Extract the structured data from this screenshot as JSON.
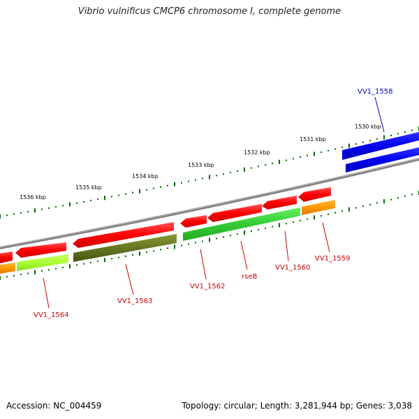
{
  "title": "Vibrio vulnificus CMCP6 chromosome I, complete genome",
  "footer": {
    "accession": "Accession: NC_004459",
    "summary": "Topology: circular; Length: 3,281,944 bp; Genes: 3,038"
  },
  "scale_labels": [
    "1536 kbp",
    "1535 kbp",
    "1534 kbp",
    "1533 kbp",
    "1532 kbp",
    "1531 kbp",
    "1530 kbp"
  ],
  "gene_labels": [
    "VV1_1558",
    "VV1_1559",
    "VV1_1560",
    "rseB",
    "VV1_1562",
    "VV1_1563",
    "VV1_1564"
  ],
  "colors": {
    "backbone": "#808080",
    "cds_forward": "#ff0000",
    "cds_blue": "#0000ee",
    "label_red": "#cc0000",
    "label_blue": "#0000cc",
    "tick": "#006600",
    "gene_lime": "#aaff33",
    "gene_orange": "#ff9900",
    "gene_olive": "#667722",
    "gene_green": "#33cc33"
  }
}
